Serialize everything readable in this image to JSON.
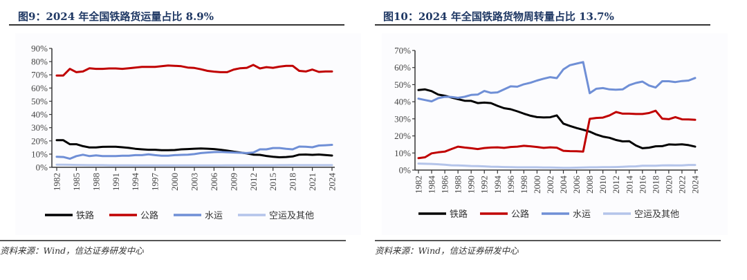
{
  "colors": {
    "title": "#1f3864",
    "railway": "#000000",
    "highway": "#c00000",
    "waterway": "#6f8fd6",
    "air_other": "#b4c4ea"
  },
  "chart_data": [
    {
      "type": "line",
      "title": "图9：2024 年全国铁路货运量占比 8.9%",
      "source": "资料来源：Wind，信达证券研发中心",
      "xlabel": "",
      "ylabel": "",
      "ylim": [
        0,
        90
      ],
      "y_ticks": [
        "0%",
        "10%",
        "20%",
        "30%",
        "40%",
        "50%",
        "60%",
        "70%",
        "80%",
        "90%"
      ],
      "x_tick_labels": [
        "1982",
        "1985",
        "1988",
        "1991",
        "1994",
        "1997",
        "2000",
        "2003",
        "2006",
        "2009",
        "2012",
        "2015",
        "2018",
        "2021",
        "2024"
      ],
      "grid": false,
      "legend": "bottom",
      "x": [
        1982,
        1983,
        1984,
        1985,
        1986,
        1987,
        1988,
        1989,
        1990,
        1991,
        1992,
        1993,
        1994,
        1995,
        1996,
        1997,
        1998,
        1999,
        2000,
        2001,
        2002,
        2003,
        2004,
        2005,
        2006,
        2007,
        2008,
        2009,
        2010,
        2011,
        2012,
        2013,
        2014,
        2015,
        2016,
        2017,
        2018,
        2019,
        2020,
        2021,
        2022,
        2023,
        2024
      ],
      "series": [
        {
          "name": "铁路",
          "color_key": "railway",
          "values": [
            20.5,
            20.5,
            17.5,
            17.5,
            16,
            15,
            15,
            15.5,
            15.6,
            15.6,
            15.2,
            14.7,
            14.0,
            13.6,
            13.3,
            13.3,
            13.0,
            12.9,
            13.1,
            13.6,
            13.8,
            14.1,
            14.3,
            14.1,
            13.8,
            13.3,
            12.6,
            11.8,
            11.2,
            10.5,
            9.6,
            9.4,
            8.6,
            8.0,
            7.6,
            7.8,
            8.2,
            9.6,
            9.7,
            9.4,
            9.7,
            9.3,
            8.9
          ]
        },
        {
          "name": "公路",
          "color_key": "highway",
          "values": [
            69.5,
            69.5,
            74.5,
            72,
            72.5,
            75,
            74.5,
            74.5,
            74.8,
            74.8,
            74.5,
            75,
            75.5,
            76,
            76,
            76,
            76.5,
            77,
            76.8,
            76.5,
            75.5,
            75.2,
            74.2,
            73,
            72.4,
            72.0,
            72.0,
            74.0,
            75.0,
            75.3,
            77.5,
            74.8,
            75.8,
            75.3,
            76.2,
            76.8,
            76.8,
            73.0,
            72.5,
            74.0,
            72.2,
            72.5,
            72.5
          ]
        },
        {
          "name": "水运",
          "color_key": "waterway",
          "values": [
            8,
            7.8,
            6.5,
            8.5,
            9.5,
            8.5,
            9,
            8.5,
            8.5,
            8.5,
            8.8,
            8.8,
            9.2,
            9.2,
            9.8,
            9.2,
            8.8,
            8.8,
            9.2,
            9.4,
            9.5,
            10,
            10.8,
            11.2,
            11.5,
            11.6,
            11.4,
            11.2,
            11.0,
            10.8,
            11.2,
            13.6,
            13.6,
            14.6,
            14.6,
            14.0,
            13.6,
            15.7,
            15.6,
            15.2,
            16.5,
            16.7,
            17.0
          ]
        },
        {
          "name": "空运及其他",
          "color_key": "air_other",
          "values": [
            2,
            2,
            1.9,
            1.8,
            1.7,
            1.6,
            1.6,
            1.6,
            1.5,
            1.5,
            1.5,
            1.5,
            1.4,
            1.4,
            1.4,
            1.4,
            1.4,
            1.4,
            1.4,
            1.4,
            1.4,
            1.4,
            1.4,
            1.4,
            1.4,
            1.4,
            1.5,
            1.5,
            1.5,
            1.5,
            1.5,
            1.5,
            1.5,
            1.5,
            1.6,
            1.6,
            1.7,
            1.6,
            1.6,
            1.6,
            1.6,
            1.6,
            1.6
          ]
        }
      ]
    },
    {
      "type": "line",
      "title": "图10：2024 年全国铁路货物周转量占比 13.7%",
      "source": "资料来源：Wind，信达证券研发中心",
      "xlabel": "",
      "ylabel": "",
      "ylim": [
        0,
        70
      ],
      "y_ticks": [
        "0%",
        "10%",
        "20%",
        "30%",
        "40%",
        "50%",
        "60%",
        "70%"
      ],
      "x_tick_labels": [
        "1982",
        "1984",
        "1986",
        "1988",
        "1990",
        "1992",
        "1994",
        "1996",
        "1998",
        "2000",
        "2002",
        "2004",
        "2006",
        "2008",
        "2010",
        "2012",
        "2014",
        "2016",
        "2018",
        "2020",
        "2022",
        "2024"
      ],
      "grid": false,
      "legend": "bottom",
      "x": [
        1982,
        1983,
        1984,
        1985,
        1986,
        1987,
        1988,
        1989,
        1990,
        1991,
        1992,
        1993,
        1994,
        1995,
        1996,
        1997,
        1998,
        1999,
        2000,
        2001,
        2002,
        2003,
        2004,
        2005,
        2006,
        2007,
        2008,
        2009,
        2010,
        2011,
        2012,
        2013,
        2014,
        2015,
        2016,
        2017,
        2018,
        2019,
        2020,
        2021,
        2022,
        2023,
        2024
      ],
      "series": [
        {
          "name": "铁路",
          "color_key": "railway",
          "values": [
            46.8,
            47.2,
            46.2,
            44.2,
            43.5,
            42.5,
            41.5,
            40.6,
            40.5,
            39.2,
            39.5,
            39.2,
            37.6,
            36.2,
            35.6,
            34.4,
            33.0,
            31.8,
            31.0,
            30.8,
            30.9,
            32.0,
            27.2,
            25.8,
            24.6,
            23.6,
            22.5,
            20.8,
            19.6,
            18.9,
            17.6,
            16.8,
            16.9,
            14.4,
            12.8,
            13.1,
            13.9,
            14.0,
            15.0,
            14.9,
            15.1,
            14.6,
            13.7
          ]
        },
        {
          "name": "公路",
          "color_key": "highway",
          "values": [
            7.0,
            7.5,
            9.8,
            10.4,
            10.8,
            12.3,
            13.7,
            13.2,
            12.8,
            12.3,
            12.9,
            13.2,
            13.3,
            13.0,
            13.5,
            13.7,
            14.2,
            13.9,
            13.5,
            13.0,
            13.3,
            13.1,
            11.3,
            11.1,
            11.0,
            10.8,
            30.0,
            30.5,
            30.7,
            32.0,
            34.0,
            33.0,
            33.0,
            32.8,
            32.8,
            33.4,
            34.7,
            30.1,
            29.8,
            31.0,
            29.7,
            29.6,
            29.4
          ]
        },
        {
          "name": "水运",
          "color_key": "waterway",
          "values": [
            41.8,
            41.0,
            40.2,
            42.1,
            42.9,
            42.8,
            42.3,
            42.9,
            44.0,
            44.2,
            46.3,
            45.2,
            45.5,
            47.2,
            49.0,
            48.8,
            50.2,
            51.1,
            52.4,
            53.5,
            54.4,
            53.8,
            58.9,
            61.4,
            62.3,
            63.2,
            45.0,
            47.6,
            48.0,
            47.2,
            47.0,
            47.2,
            49.7,
            51.0,
            51.8,
            49.5,
            48.3,
            52.0,
            52.0,
            51.5,
            52.1,
            52.4,
            53.9
          ]
        },
        {
          "name": "空运及其他",
          "color_key": "air_other",
          "values": [
            3.8,
            3.7,
            3.6,
            3.4,
            3.1,
            2.8,
            2.7,
            2.6,
            2.4,
            2.3,
            2.2,
            2.0,
            1.9,
            1.8,
            1.7,
            1.6,
            1.6,
            1.6,
            1.6,
            1.5,
            1.5,
            1.4,
            1.3,
            1.3,
            1.4,
            1.5,
            1.6,
            1.6,
            1.7,
            1.7,
            1.8,
            1.9,
            2.1,
            2.2,
            2.5,
            2.5,
            2.5,
            2.7,
            2.8,
            2.7,
            2.7,
            3.0,
            3.0
          ]
        }
      ]
    }
  ]
}
